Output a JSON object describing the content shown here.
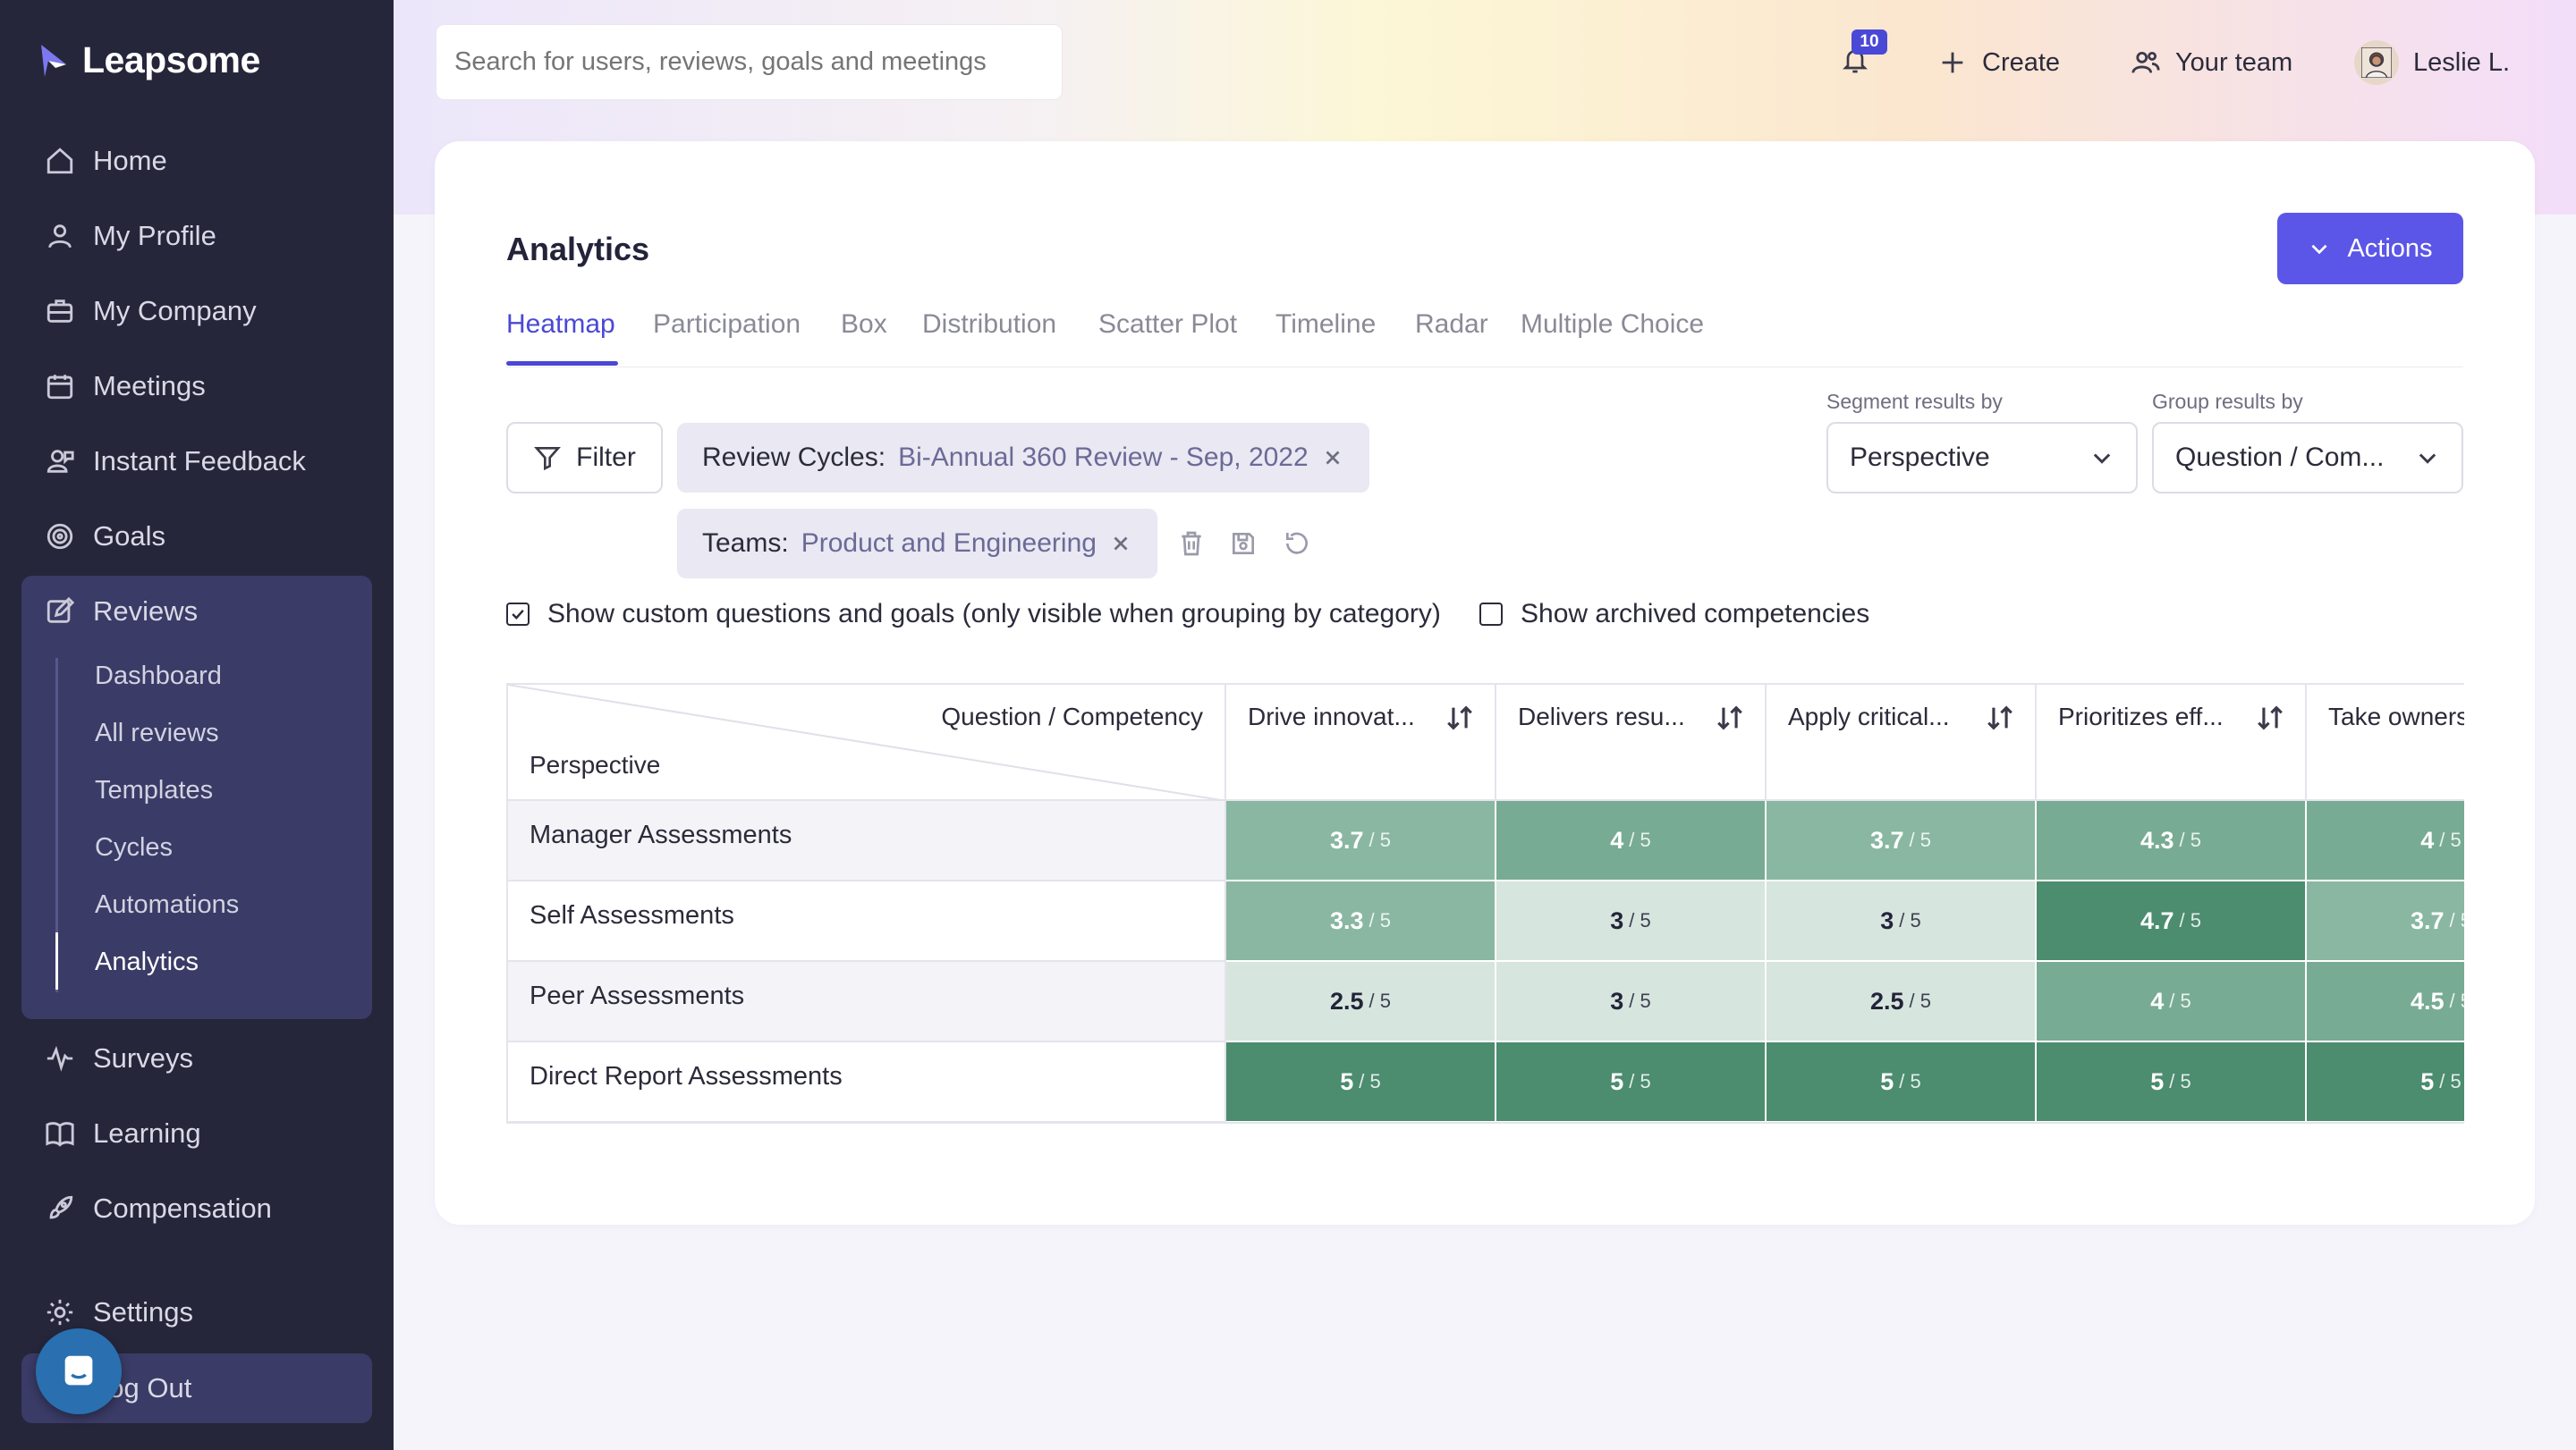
{
  "app": {
    "logo_text": "Leapsome",
    "brand_color": "#4a48d6",
    "sidebar_color": "#25263a"
  },
  "sidebar": {
    "items": [
      {
        "label": "Home",
        "icon": "home-icon"
      },
      {
        "label": "My Profile",
        "icon": "user-icon"
      },
      {
        "label": "My Company",
        "icon": "briefcase-icon"
      },
      {
        "label": "Meetings",
        "icon": "calendar-icon"
      },
      {
        "label": "Instant Feedback",
        "icon": "feedback-icon"
      },
      {
        "label": "Goals",
        "icon": "target-icon"
      },
      {
        "label": "Reviews",
        "icon": "edit-icon"
      },
      {
        "label": "Surveys",
        "icon": "activity-icon"
      },
      {
        "label": "Learning",
        "icon": "book-icon"
      },
      {
        "label": "Compensation",
        "icon": "rocket-icon"
      },
      {
        "label": "Settings",
        "icon": "gear-icon"
      },
      {
        "label": "Log Out",
        "icon": "logout-icon"
      }
    ],
    "reviews_sub": [
      {
        "label": "Dashboard"
      },
      {
        "label": "All reviews"
      },
      {
        "label": "Templates"
      },
      {
        "label": "Cycles"
      },
      {
        "label": "Automations"
      },
      {
        "label": "Analytics",
        "active": true
      }
    ]
  },
  "header": {
    "search_placeholder": "Search for users, reviews, goals and meetings",
    "notification_count": "10",
    "create_label": "Create",
    "team_label": "Your team",
    "user_name": "Leslie L."
  },
  "page": {
    "title": "Analytics",
    "actions_label": "Actions",
    "tabs": [
      {
        "label": "Heatmap",
        "active": true
      },
      {
        "label": "Participation"
      },
      {
        "label": "Box"
      },
      {
        "label": "Distribution"
      },
      {
        "label": "Scatter Plot"
      },
      {
        "label": "Timeline"
      },
      {
        "label": "Radar"
      },
      {
        "label": "Multiple Choice"
      }
    ],
    "filter_label": "Filter",
    "chips": [
      {
        "key": "Review Cycles:",
        "value": "Bi-Annual 360 Review - Sep, 2022"
      },
      {
        "key": "Teams:",
        "value": "Product and Engineering"
      }
    ],
    "segment_label": "Segment results by",
    "segment_value": "Perspective",
    "group_label": "Group results by",
    "group_value": "Question / Com...",
    "checkbox_custom": {
      "label": "Show custom questions and goals (only visible when grouping by category)",
      "checked": true
    },
    "checkbox_archived": {
      "label": "Show archived competencies",
      "checked": false
    }
  },
  "heatmap": {
    "col_title": "Question / Competency",
    "row_title": "Perspective",
    "scale_max": "5",
    "columns": [
      "Drive innovat...",
      "Delivers resu...",
      "Apply critical...",
      "Prioritizes eff...",
      "Take owners"
    ],
    "rows": [
      {
        "label": "Manager Assessments",
        "values": [
          "3.7",
          "4",
          "3.7",
          "4.3",
          "4"
        ]
      },
      {
        "label": "Self Assessments",
        "values": [
          "3.3",
          "3",
          "3",
          "4.7",
          "3.7"
        ]
      },
      {
        "label": "Peer Assessments",
        "values": [
          "2.5",
          "3",
          "2.5",
          "4",
          "4.5"
        ]
      },
      {
        "label": "Direct Report Assessments",
        "values": [
          "5",
          "5",
          "5",
          "5",
          "5"
        ]
      }
    ],
    "colors": {
      "low": "#d6e5dd",
      "mid_low": "#89b7a1",
      "mid": "#78ab93",
      "high": "#4c8c6f"
    }
  }
}
